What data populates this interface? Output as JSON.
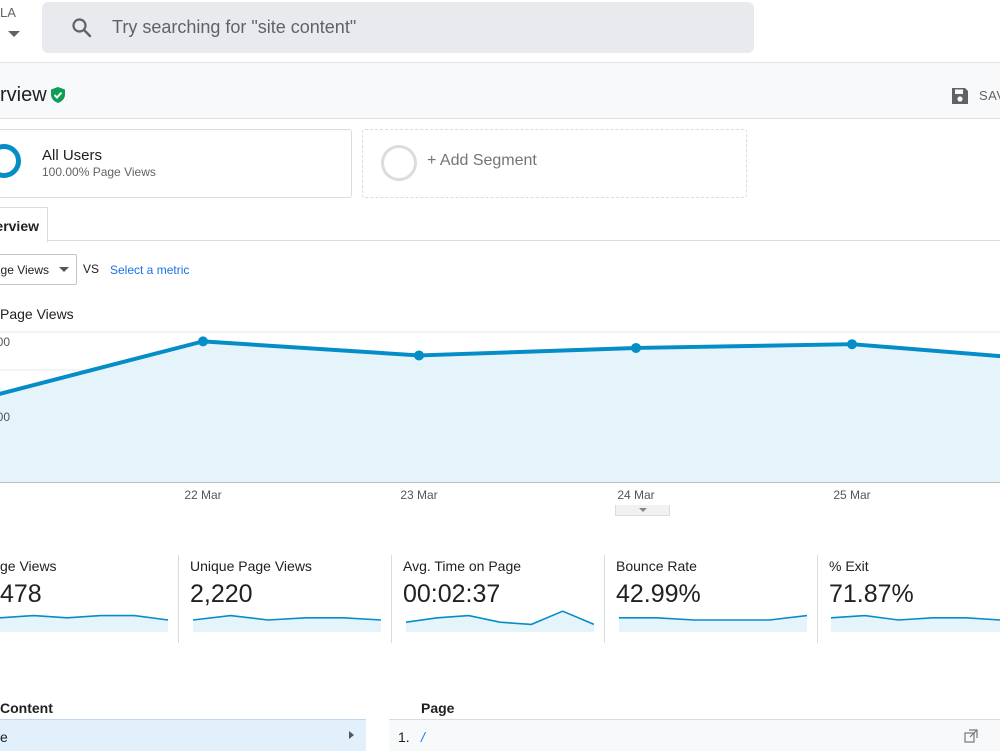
{
  "account": {
    "label": "LA"
  },
  "search": {
    "placeholder": "Try searching for \"site content\""
  },
  "header": {
    "title": "rview",
    "save_label": "SAV"
  },
  "segments": {
    "all_users": {
      "name": "All Users",
      "subtitle": "100.00% Page Views"
    },
    "add_segment": {
      "label": "+ Add Segment"
    }
  },
  "tabs": [
    {
      "label": "erview"
    }
  ],
  "metric_selector": {
    "selected": "ge Views",
    "vs": "VS",
    "select_metric": "Select a metric"
  },
  "chart_data": {
    "type": "area",
    "title": "Page Views",
    "series": [
      {
        "name": "Page Views",
        "values": [
          890,
          950,
          935,
          943,
          947,
          933
        ]
      }
    ],
    "x_labels": [
      "22 Mar",
      "23 Mar",
      "24 Mar",
      "25 Mar"
    ],
    "y_tick_labels": [
      "00",
      "00"
    ],
    "color": "#058dc7",
    "fill": "#e5f4fb"
  },
  "scorecards": [
    {
      "label": "ge Views",
      "value": "478",
      "spark": [
        5,
        6,
        5,
        6,
        6,
        4
      ]
    },
    {
      "label": "Unique Page Views",
      "value": "2,220",
      "spark": [
        4,
        6,
        4,
        5,
        5,
        4
      ]
    },
    {
      "label": "Avg. Time on Page",
      "value": "00:02:37",
      "spark": [
        3,
        5,
        6,
        3,
        2,
        8,
        2
      ]
    },
    {
      "label": "Bounce Rate",
      "value": "42.99%",
      "spark": [
        5,
        5,
        4,
        4,
        4,
        6
      ]
    },
    {
      "label": "% Exit",
      "value": "71.87%",
      "spark": [
        5,
        6,
        4,
        5,
        5,
        4
      ]
    }
  ],
  "table": {
    "content_header": " Content",
    "content_row_label": "e",
    "page_header": "Page",
    "row_number": "1.",
    "row_page": "/"
  },
  "icons": {
    "search": "search-icon",
    "verified": "verified-shield-icon",
    "save": "floppy-disk-icon",
    "open_external": "open-in-new-icon"
  }
}
